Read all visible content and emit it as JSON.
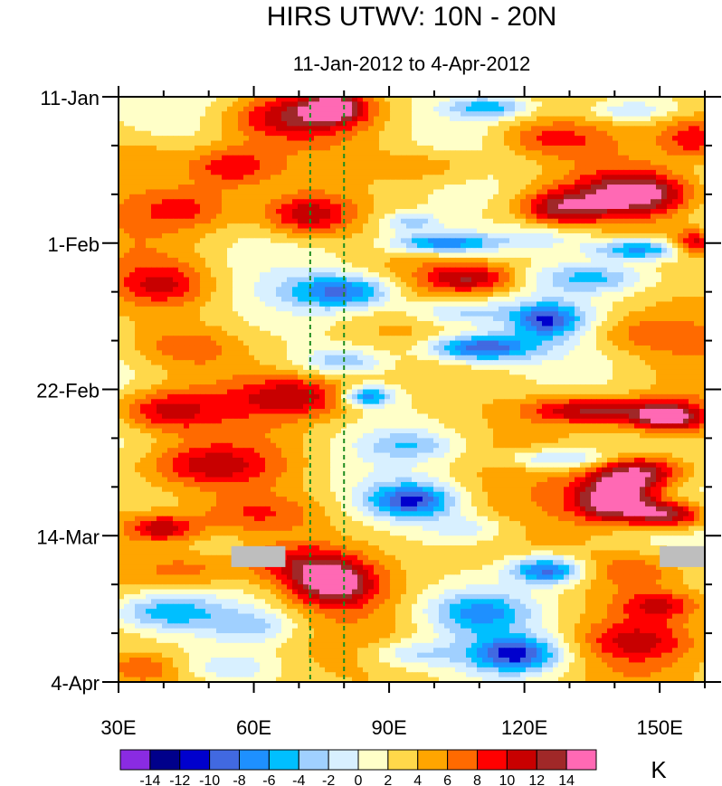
{
  "chart_data": {
    "type": "heatmap",
    "title": "HIRS UTWV: 10N - 20N",
    "subtitle": "11-Jan-2012 to 4-Apr-2012",
    "x_axis": {
      "range": [
        30,
        160
      ],
      "ticks": [
        30,
        60,
        90,
        120,
        150
      ],
      "tick_labels": [
        "30E",
        "60E",
        "90E",
        "120E",
        "150E"
      ]
    },
    "y_axis": {
      "range_days": [
        0,
        84
      ],
      "ticks_days": [
        0,
        21,
        42,
        63,
        84
      ],
      "tick_labels": [
        "11-Jan",
        "1-Feb",
        "22-Feb",
        "14-Mar",
        "4-Apr"
      ]
    },
    "reference_lines_lon": [
      72.5,
      80
    ],
    "colorbar": {
      "unit": "K",
      "levels": [
        -14,
        -12,
        -10,
        -8,
        -6,
        -4,
        -2,
        0,
        2,
        4,
        6,
        8,
        10,
        12,
        14
      ],
      "level_labels": [
        "-14",
        "-12",
        "-10",
        "-8",
        "-6",
        "-4",
        "-2",
        "0",
        "2",
        "4",
        "6",
        "8",
        "10",
        "12",
        "14"
      ],
      "colors": [
        "#8a2be2",
        "#00008b",
        "#0000cd",
        "#4169e1",
        "#1e90ff",
        "#00bfff",
        "#a0d0ff",
        "#d8f0ff",
        "#ffffc8",
        "#ffd84a",
        "#ffa500",
        "#ff6a00",
        "#ff0000",
        "#c80000",
        "#a02828",
        "#ff69b4"
      ]
    },
    "missing_color": "#bebebe",
    "missing_regions": [
      {
        "lon": [
          55,
          67
        ],
        "day": [
          64.5,
          67.5
        ]
      },
      {
        "lon": [
          150,
          160
        ],
        "day": [
          64.5,
          67.5
        ]
      }
    ],
    "anomaly_features": [
      {
        "lon": 78,
        "day": 1.5,
        "value": 10,
        "slon": 7,
        "sday": 2
      },
      {
        "lon": 68,
        "day": 3,
        "value": 7,
        "slon": 14,
        "sday": 3
      },
      {
        "lon": 112,
        "day": 1.5,
        "value": -7,
        "slon": 9,
        "sday": 1.5
      },
      {
        "lon": 143,
        "day": 2,
        "value": -5,
        "slon": 9,
        "sday": 1.5
      },
      {
        "lon": 125,
        "day": 6,
        "value": 5,
        "slon": 12,
        "sday": 2.5
      },
      {
        "lon": 158,
        "day": 6,
        "value": 7,
        "slon": 8,
        "sday": 3
      },
      {
        "lon": 35,
        "day": 9,
        "value": 3,
        "slon": 10,
        "sday": 3
      },
      {
        "lon": 55,
        "day": 10,
        "value": 7,
        "slon": 10,
        "sday": 3
      },
      {
        "lon": 100,
        "day": 10,
        "value": 4,
        "slon": 12,
        "sday": 2.5
      },
      {
        "lon": 145,
        "day": 14,
        "value": 12,
        "slon": 12,
        "sday": 3
      },
      {
        "lon": 128,
        "day": 16,
        "value": 9,
        "slon": 9,
        "sday": 2.5
      },
      {
        "lon": 72,
        "day": 17,
        "value": 9,
        "slon": 10,
        "sday": 3
      },
      {
        "lon": 45,
        "day": 16,
        "value": 5,
        "slon": 12,
        "sday": 3
      },
      {
        "lon": 95,
        "day": 18,
        "value": -6,
        "slon": 7,
        "sday": 1.5
      },
      {
        "lon": 102,
        "day": 21,
        "value": -11,
        "slon": 12,
        "sday": 1.5
      },
      {
        "lon": 125,
        "day": 20,
        "value": -4,
        "slon": 12,
        "sday": 2
      },
      {
        "lon": 145,
        "day": 22,
        "value": -10,
        "slon": 10,
        "sday": 1.5
      },
      {
        "lon": 158,
        "day": 21,
        "value": 9,
        "slon": 5,
        "sday": 2
      },
      {
        "lon": 40,
        "day": 27,
        "value": 6,
        "slon": 10,
        "sday": 3
      },
      {
        "lon": 80,
        "day": 28,
        "value": -11,
        "slon": 12,
        "sday": 2.5
      },
      {
        "lon": 108,
        "day": 26,
        "value": 8,
        "slon": 10,
        "sday": 2
      },
      {
        "lon": 135,
        "day": 26,
        "value": -7,
        "slon": 12,
        "sday": 2
      },
      {
        "lon": 105,
        "day": 31,
        "value": -7,
        "slon": 12,
        "sday": 2
      },
      {
        "lon": 125,
        "day": 32,
        "value": -11,
        "slon": 8,
        "sday": 2.5
      },
      {
        "lon": 145,
        "day": 34,
        "value": 4,
        "slon": 12,
        "sday": 3
      },
      {
        "lon": 110,
        "day": 36,
        "value": -13,
        "slon": 12,
        "sday": 2
      },
      {
        "lon": 45,
        "day": 36,
        "value": 4,
        "slon": 12,
        "sday": 3
      },
      {
        "lon": 80,
        "day": 38,
        "value": -6,
        "slon": 10,
        "sday": 2
      },
      {
        "lon": 70,
        "day": 43,
        "value": 8,
        "slon": 14,
        "sday": 3
      },
      {
        "lon": 85,
        "day": 43,
        "value": -11,
        "slon": 6,
        "sday": 1.5
      },
      {
        "lon": 135,
        "day": 45,
        "value": 10,
        "slon": 14,
        "sday": 2
      },
      {
        "lon": 152,
        "day": 46,
        "value": 12,
        "slon": 8,
        "sday": 2
      },
      {
        "lon": 40,
        "day": 45,
        "value": 8,
        "slon": 12,
        "sday": 3
      },
      {
        "lon": 50,
        "day": 53,
        "value": 7,
        "slon": 14,
        "sday": 3
      },
      {
        "lon": 95,
        "day": 50,
        "value": -5,
        "slon": 10,
        "sday": 2
      },
      {
        "lon": 128,
        "day": 52,
        "value": -7,
        "slon": 12,
        "sday": 1.5
      },
      {
        "lon": 145,
        "day": 54,
        "value": 12,
        "slon": 10,
        "sday": 2.5
      },
      {
        "lon": 140,
        "day": 58,
        "value": 15,
        "slon": 9,
        "sday": 3
      },
      {
        "lon": 152,
        "day": 60,
        "value": 12,
        "slon": 8,
        "sday": 2
      },
      {
        "lon": 95,
        "day": 58,
        "value": -12,
        "slon": 10,
        "sday": 2.5
      },
      {
        "lon": 60,
        "day": 60,
        "value": 5,
        "slon": 14,
        "sday": 3
      },
      {
        "lon": 40,
        "day": 62,
        "value": 9,
        "slon": 8,
        "sday": 2
      },
      {
        "lon": 108,
        "day": 62,
        "value": -4,
        "slon": 10,
        "sday": 2
      },
      {
        "lon": 70,
        "day": 67,
        "value": 7,
        "slon": 12,
        "sday": 3
      },
      {
        "lon": 78,
        "day": 70,
        "value": 11,
        "slon": 9,
        "sday": 3
      },
      {
        "lon": 45,
        "day": 68,
        "value": 6,
        "slon": 12,
        "sday": 3
      },
      {
        "lon": 125,
        "day": 68,
        "value": -12,
        "slon": 8,
        "sday": 2
      },
      {
        "lon": 145,
        "day": 68,
        "value": 5,
        "slon": 12,
        "sday": 3
      },
      {
        "lon": 40,
        "day": 74,
        "value": -7,
        "slon": 12,
        "sday": 2.5
      },
      {
        "lon": 60,
        "day": 76,
        "value": -5,
        "slon": 10,
        "sday": 2.5
      },
      {
        "lon": 110,
        "day": 74,
        "value": -8,
        "slon": 12,
        "sday": 3
      },
      {
        "lon": 118,
        "day": 80,
        "value": -12,
        "slon": 10,
        "sday": 2.5
      },
      {
        "lon": 145,
        "day": 78,
        "value": 6,
        "slon": 12,
        "sday": 3
      },
      {
        "lon": 150,
        "day": 73,
        "value": 7,
        "slon": 9,
        "sday": 2
      },
      {
        "lon": 95,
        "day": 80,
        "value": -5,
        "slon": 10,
        "sday": 2
      },
      {
        "lon": 35,
        "day": 82,
        "value": 4,
        "slon": 8,
        "sday": 2
      },
      {
        "lon": 55,
        "day": 82,
        "value": -4,
        "slon": 10,
        "sday": 2
      }
    ]
  }
}
